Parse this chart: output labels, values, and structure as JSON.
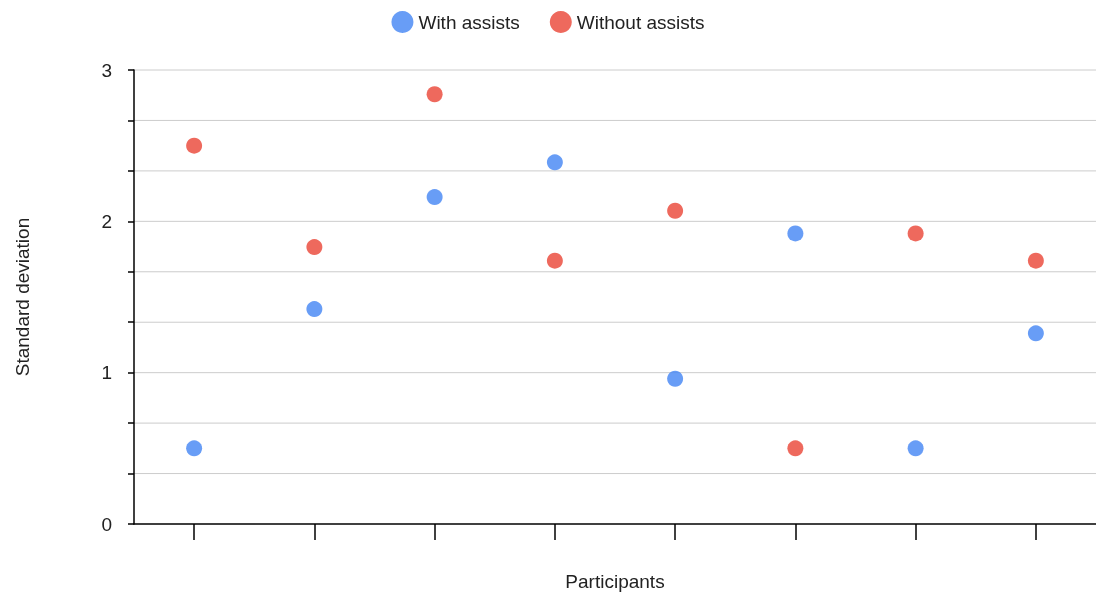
{
  "chart_data": {
    "type": "scatter",
    "xlabel": "Participants",
    "ylabel": "Standard deviation",
    "categories": [
      null,
      null,
      null,
      null,
      null,
      null,
      null,
      null
    ],
    "series": [
      {
        "name": "With assists",
        "color": "#4285f4",
        "values": [
          0.5,
          1.42,
          2.16,
          2.39,
          0.96,
          1.92,
          0.5,
          1.26
        ]
      },
      {
        "name": "Without assists",
        "color": "#ea4335",
        "values": [
          2.5,
          1.83,
          2.84,
          1.74,
          2.07,
          0.5,
          1.92,
          1.74
        ]
      }
    ],
    "ylim": [
      0,
      3
    ],
    "yticks": [
      0,
      {
        "value": 0.3333,
        "label": null
      },
      {
        "value": 0.6667,
        "label": null
      },
      1,
      {
        "value": 1.3333,
        "label": null
      },
      {
        "value": 1.6667,
        "label": null
      },
      2,
      {
        "value": 2.3333,
        "label": null
      },
      {
        "value": 2.6667,
        "label": null
      },
      3
    ],
    "grid": "y",
    "legend": "top",
    "marker": "circle"
  }
}
